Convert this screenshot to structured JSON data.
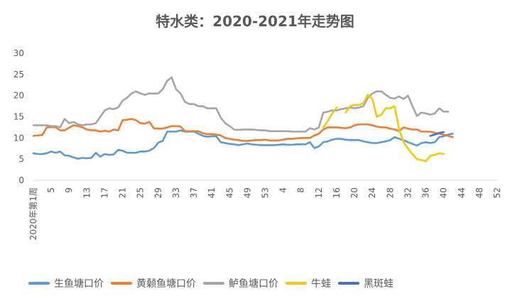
{
  "chart_data": {
    "type": "line",
    "title": "特水类：2020-2021年走势图",
    "ylim": [
      0,
      30
    ],
    "yticks": [
      0,
      5,
      10,
      15,
      20,
      25,
      30
    ],
    "xticks": [
      {
        "week": 1,
        "label": "2020年第1周"
      },
      {
        "week": 5,
        "label": "5"
      },
      {
        "week": 9,
        "label": "9"
      },
      {
        "week": 13,
        "label": "13"
      },
      {
        "week": 17,
        "label": "17"
      },
      {
        "week": 21,
        "label": "21"
      },
      {
        "week": 25,
        "label": "25"
      },
      {
        "week": 29,
        "label": "29"
      },
      {
        "week": 33,
        "label": "33"
      },
      {
        "week": 37,
        "label": "37"
      },
      {
        "week": 41,
        "label": "41"
      },
      {
        "week": 45,
        "label": "45"
      },
      {
        "week": 49,
        "label": "49"
      },
      {
        "week": 53,
        "label": "53"
      },
      {
        "week": 57,
        "label": "4"
      },
      {
        "week": 61,
        "label": "8"
      },
      {
        "week": 65,
        "label": "12"
      },
      {
        "week": 69,
        "label": "16"
      },
      {
        "week": 73,
        "label": "20"
      },
      {
        "week": 77,
        "label": "24"
      },
      {
        "week": 81,
        "label": "28"
      },
      {
        "week": 85,
        "label": "32"
      },
      {
        "week": 89,
        "label": "36"
      },
      {
        "week": 93,
        "label": "40"
      },
      {
        "week": 97,
        "label": "44"
      },
      {
        "week": 101,
        "label": "48"
      },
      {
        "week": 105,
        "label": "52"
      }
    ],
    "grid": false,
    "legend_position": "bottom",
    "series": [
      {
        "name": "生鱼塘口价",
        "color": "#5b9bd5",
        "start_week": 1,
        "values": [
          6.4,
          6.2,
          6.2,
          6.4,
          6.8,
          6.5,
          6.8,
          5.9,
          5.8,
          5.4,
          5.1,
          5.3,
          5.2,
          5.3,
          6.5,
          5.6,
          6.2,
          6.0,
          6.1,
          7.2,
          7.0,
          6.5,
          6.5,
          6.5,
          6.8,
          6.8,
          7.0,
          7.6,
          8.9,
          9.3,
          11.5,
          11.5,
          11.5,
          11.8,
          11.5,
          11.5,
          11.5,
          11.0,
          10.5,
          10.3,
          10.4,
          10.4,
          9.0,
          8.8,
          8.6,
          8.5,
          8.3,
          8.5,
          8.7,
          8.5,
          8.4,
          8.3,
          8.3,
          8.3,
          8.3,
          8.4,
          8.5,
          8.4,
          8.4,
          8.5,
          8.5,
          8.5,
          9.0,
          7.6,
          8.0,
          9.0,
          9.2,
          9.6,
          9.8,
          9.8,
          9.6,
          9.5,
          9.5,
          9.5,
          9.2,
          9.0,
          8.8,
          8.8,
          9.0,
          9.2,
          9.5,
          10.2,
          9.8,
          9.5,
          9.0,
          8.6,
          8.2,
          8.8,
          9.0,
          8.8,
          9.0,
          10.2,
          10.4,
          10.8,
          11.0
        ]
      },
      {
        "name": "黄颡鱼塘口价",
        "color": "#ed7d31",
        "start_week": 1,
        "values": [
          10.5,
          10.6,
          10.7,
          12.5,
          12.6,
          12.5,
          11.8,
          11.8,
          12.4,
          13.0,
          12.8,
          12.5,
          12.0,
          11.8,
          11.8,
          11.5,
          11.7,
          11.5,
          12.0,
          11.8,
          14.2,
          14.3,
          14.5,
          14.2,
          13.5,
          13.4,
          13.8,
          12.3,
          12.2,
          12.2,
          12.5,
          12.8,
          12.8,
          12.7,
          11.6,
          11.6,
          11.6,
          11.6,
          11.1,
          10.9,
          10.9,
          10.8,
          10.6,
          10.0,
          9.8,
          9.6,
          9.5,
          9.3,
          9.3,
          9.4,
          9.5,
          9.5,
          9.6,
          9.4,
          9.4,
          9.4,
          9.6,
          9.8,
          9.8,
          9.9,
          10.0,
          10.0,
          10.0,
          10.6,
          11.0,
          12.0,
          12.5,
          12.5,
          12.5,
          12.4,
          12.3,
          12.5,
          13.0,
          13.2,
          13.2,
          13.2,
          13.0,
          12.7,
          12.5,
          12.5,
          12.2,
          12.0,
          11.6,
          12.5,
          12.2,
          12.0,
          12.0,
          11.5,
          11.5,
          11.5,
          11.2,
          11.0,
          10.8,
          10.5,
          10.2
        ]
      },
      {
        "name": "鲈鱼塘口价",
        "color": "#a5a5a5",
        "start_week": 1,
        "values": [
          13.0,
          13.0,
          13.0,
          13.0,
          12.8,
          12.8,
          12.5,
          14.5,
          13.5,
          13.8,
          13.2,
          13.0,
          13.2,
          13.2,
          13.5,
          15.0,
          16.5,
          17.0,
          16.8,
          17.2,
          18.8,
          19.5,
          20.5,
          21.0,
          20.5,
          20.2,
          20.5,
          20.5,
          20.5,
          21.5,
          23.5,
          24.3,
          21.5,
          20.5,
          18.5,
          18.0,
          18.0,
          17.5,
          17.5,
          17.0,
          17.0,
          17.0,
          14.8,
          13.5,
          12.8,
          12.0,
          11.9,
          12.0,
          12.0,
          12.0,
          11.9,
          11.8,
          11.8,
          11.6,
          11.6,
          11.6,
          11.6,
          11.6,
          11.5,
          11.5,
          11.5,
          11.5,
          12.3,
          12.0,
          12.5,
          16.0,
          16.2,
          16.5,
          16.5,
          16.8,
          17.0,
          17.2,
          17.0,
          17.2,
          17.5,
          19.5,
          20.5,
          21.0,
          21.0,
          20.2,
          19.5,
          19.3,
          19.8,
          19.2,
          20.0,
          17.5,
          15.2,
          16.0,
          15.8,
          15.5,
          15.8,
          17.0,
          16.2,
          16.2
        ]
      },
      {
        "name": "牛蛙",
        "color": "#f7c806",
        "start_week": 66,
        "values": [
          12.5,
          14.0,
          15.8,
          17.2,
          null,
          16.0,
          17.5,
          17.8,
          17.8,
          18.2,
          20.2,
          19.2,
          15.0,
          15.5,
          17.0,
          17.0,
          17.5,
          12.0,
          9.0,
          7.5,
          6.2,
          5.0,
          4.8,
          4.5,
          5.8,
          6.0,
          6.4,
          6.2
        ]
      },
      {
        "name": "黑斑蛙",
        "color": "#4472c4",
        "start_week": 90,
        "values": [
          10.5,
          10.8,
          11.2,
          11.4
        ]
      }
    ]
  }
}
